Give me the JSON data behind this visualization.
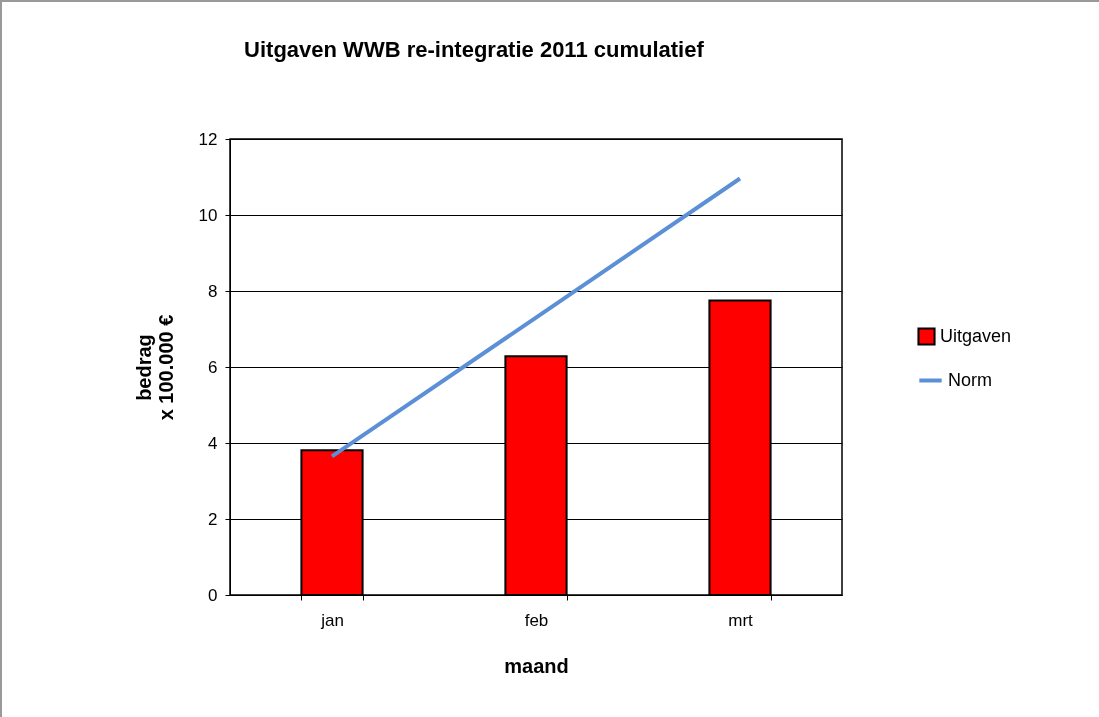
{
  "chart_data": {
    "type": "bar",
    "title": "Uitgaven WWB re-integratie  2011 cumulatief",
    "xlabel": "maand",
    "ylabel": "bedrag\nx 100.000 €",
    "categories": [
      "jan",
      "feb",
      "mrt"
    ],
    "series": [
      {
        "name": "Uitgaven",
        "color": "#ff0000",
        "values": [
          3.81,
          6.28,
          7.75
        ]
      },
      {
        "name": "Norm",
        "type": "line",
        "color": "#5b8fd6",
        "values": [
          3.65,
          7.3,
          10.96
        ]
      }
    ],
    "ylim": [
      0,
      12
    ],
    "yticks": [
      0,
      2,
      4,
      6,
      8,
      10,
      12
    ],
    "grid": "y",
    "legend": "right",
    "marker": "none",
    "line_style": "solid"
  }
}
